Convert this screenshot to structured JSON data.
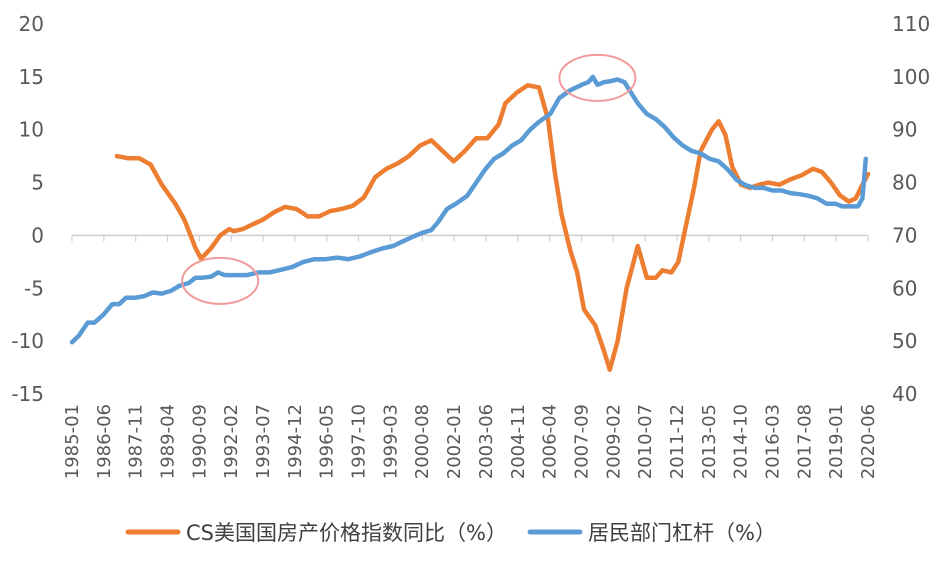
{
  "chart_data": {
    "type": "line",
    "title": "",
    "xlabel": "",
    "ylabel_left": "",
    "ylabel_right": "",
    "y_left_ticks": [
      20,
      15,
      10,
      5,
      0,
      -5,
      -10,
      -15
    ],
    "y_right_ticks": [
      110,
      100,
      90,
      80,
      70,
      60,
      50,
      40
    ],
    "y_left_range": [
      -15,
      20
    ],
    "y_right_range": [
      40,
      110
    ],
    "x_ticks": [
      "1985-01",
      "1986-06",
      "1987-11",
      "1989-04",
      "1990-09",
      "1992-02",
      "1993-07",
      "1994-12",
      "1996-05",
      "1997-10",
      "1999-03",
      "2000-08",
      "2002-01",
      "2003-06",
      "2004-11",
      "2006-04",
      "2007-09",
      "2009-02",
      "2010-07",
      "2011-12",
      "2013-05",
      "2014-10",
      "2016-03",
      "2017-08",
      "2019-01",
      "2020-06"
    ],
    "legend_position": "bottom",
    "grid": false,
    "series": [
      {
        "name": "CS美国国房产价格指数同比（%）",
        "axis": "left",
        "color": "#ED7D31",
        "points": [
          [
            1987.0,
            7.5
          ],
          [
            1987.5,
            7.3
          ],
          [
            1988.0,
            7.3
          ],
          [
            1988.5,
            6.7
          ],
          [
            1989.0,
            4.8
          ],
          [
            1989.6,
            3.0
          ],
          [
            1990.0,
            1.5
          ],
          [
            1990.5,
            -1.2
          ],
          [
            1990.75,
            -2.2
          ],
          [
            1991.2,
            -1.2
          ],
          [
            1991.6,
            0.0
          ],
          [
            1992.0,
            0.6
          ],
          [
            1992.2,
            0.4
          ],
          [
            1992.6,
            0.6
          ],
          [
            1993.0,
            1.0
          ],
          [
            1993.5,
            1.5
          ],
          [
            1994.0,
            2.2
          ],
          [
            1994.5,
            2.7
          ],
          [
            1995.0,
            2.5
          ],
          [
            1995.5,
            1.8
          ],
          [
            1996.0,
            1.8
          ],
          [
            1996.5,
            2.3
          ],
          [
            1997.0,
            2.5
          ],
          [
            1997.5,
            2.8
          ],
          [
            1998.0,
            3.6
          ],
          [
            1998.5,
            5.5
          ],
          [
            1999.0,
            6.3
          ],
          [
            1999.5,
            6.8
          ],
          [
            2000.0,
            7.5
          ],
          [
            2000.5,
            8.5
          ],
          [
            2001.0,
            9.0
          ],
          [
            2001.5,
            8.0
          ],
          [
            2002.0,
            7.0
          ],
          [
            2002.5,
            8.0
          ],
          [
            2003.0,
            9.2
          ],
          [
            2003.5,
            9.2
          ],
          [
            2004.0,
            10.5
          ],
          [
            2004.3,
            12.5
          ],
          [
            2004.8,
            13.5
          ],
          [
            2005.3,
            14.2
          ],
          [
            2005.8,
            14.0
          ],
          [
            2006.2,
            11.0
          ],
          [
            2006.5,
            6.0
          ],
          [
            2006.8,
            2.0
          ],
          [
            2007.2,
            -1.5
          ],
          [
            2007.5,
            -3.5
          ],
          [
            2007.8,
            -7.0
          ],
          [
            2008.3,
            -8.5
          ],
          [
            2008.7,
            -11.0
          ],
          [
            2008.95,
            -12.7
          ],
          [
            2009.3,
            -10.0
          ],
          [
            2009.7,
            -5.0
          ],
          [
            2010.2,
            -1.0
          ],
          [
            2010.6,
            -4.0
          ],
          [
            2011.0,
            -4.0
          ],
          [
            2011.3,
            -3.3
          ],
          [
            2011.7,
            -3.5
          ],
          [
            2012.0,
            -2.5
          ],
          [
            2012.3,
            0.5
          ],
          [
            2012.7,
            4.5
          ],
          [
            2013.0,
            8.0
          ],
          [
            2013.5,
            10.0
          ],
          [
            2013.8,
            10.8
          ],
          [
            2014.1,
            9.5
          ],
          [
            2014.4,
            6.5
          ],
          [
            2014.8,
            4.8
          ],
          [
            2015.2,
            4.5
          ],
          [
            2015.6,
            4.8
          ],
          [
            2016.0,
            5.0
          ],
          [
            2016.5,
            4.8
          ],
          [
            2017.0,
            5.3
          ],
          [
            2017.5,
            5.7
          ],
          [
            2018.0,
            6.3
          ],
          [
            2018.4,
            6.0
          ],
          [
            2018.8,
            5.0
          ],
          [
            2019.2,
            3.8
          ],
          [
            2019.6,
            3.2
          ],
          [
            2019.9,
            3.5
          ],
          [
            2020.2,
            4.8
          ],
          [
            2020.45,
            5.8
          ]
        ]
      },
      {
        "name": "居民部门杠杆（%）",
        "axis": "right",
        "color": "#5B9BD5",
        "points": [
          [
            1985.0,
            49.8
          ],
          [
            1985.3,
            51.0
          ],
          [
            1985.7,
            53.5
          ],
          [
            1986.0,
            53.5
          ],
          [
            1986.4,
            55.0
          ],
          [
            1986.8,
            57.0
          ],
          [
            1987.1,
            57.0
          ],
          [
            1987.4,
            58.2
          ],
          [
            1987.8,
            58.2
          ],
          [
            1988.2,
            58.5
          ],
          [
            1988.6,
            59.2
          ],
          [
            1989.0,
            59.0
          ],
          [
            1989.4,
            59.5
          ],
          [
            1989.8,
            60.5
          ],
          [
            1990.2,
            61.0
          ],
          [
            1990.5,
            62.0
          ],
          [
            1990.8,
            62.0
          ],
          [
            1991.2,
            62.2
          ],
          [
            1991.5,
            63.0
          ],
          [
            1991.8,
            62.5
          ],
          [
            1992.3,
            62.5
          ],
          [
            1992.8,
            62.5
          ],
          [
            1993.3,
            63.0
          ],
          [
            1993.8,
            63.0
          ],
          [
            1994.3,
            63.5
          ],
          [
            1994.8,
            64.0
          ],
          [
            1995.3,
            65.0
          ],
          [
            1995.8,
            65.5
          ],
          [
            1996.3,
            65.5
          ],
          [
            1996.8,
            65.8
          ],
          [
            1997.3,
            65.5
          ],
          [
            1997.8,
            66.0
          ],
          [
            1998.3,
            66.8
          ],
          [
            1998.8,
            67.5
          ],
          [
            1999.3,
            68.0
          ],
          [
            1999.8,
            69.0
          ],
          [
            2000.2,
            69.8
          ],
          [
            2000.6,
            70.5
          ],
          [
            2001.0,
            71.0
          ],
          [
            2001.3,
            72.5
          ],
          [
            2001.7,
            75.0
          ],
          [
            2002.1,
            76.0
          ],
          [
            2002.6,
            77.5
          ],
          [
            2003.0,
            80.0
          ],
          [
            2003.4,
            82.5
          ],
          [
            2003.8,
            84.5
          ],
          [
            2004.2,
            85.5
          ],
          [
            2004.6,
            87.0
          ],
          [
            2005.0,
            88.0
          ],
          [
            2005.4,
            90.0
          ],
          [
            2005.8,
            91.5
          ],
          [
            2006.3,
            93.0
          ],
          [
            2006.7,
            96.0
          ],
          [
            2007.2,
            97.5
          ],
          [
            2007.7,
            98.5
          ],
          [
            2008.0,
            99.0
          ],
          [
            2008.2,
            100.0
          ],
          [
            2008.4,
            98.5
          ],
          [
            2008.7,
            99.0
          ],
          [
            2009.0,
            99.2
          ],
          [
            2009.3,
            99.5
          ],
          [
            2009.6,
            99.0
          ],
          [
            2009.9,
            97.0
          ],
          [
            2010.2,
            95.0
          ],
          [
            2010.6,
            93.0
          ],
          [
            2011.0,
            92.0
          ],
          [
            2011.4,
            90.5
          ],
          [
            2011.8,
            88.5
          ],
          [
            2012.2,
            87.0
          ],
          [
            2012.6,
            86.0
          ],
          [
            2013.0,
            85.5
          ],
          [
            2013.4,
            84.5
          ],
          [
            2013.8,
            84.0
          ],
          [
            2014.2,
            82.5
          ],
          [
            2014.6,
            80.5
          ],
          [
            2015.0,
            79.5
          ],
          [
            2015.4,
            79.0
          ],
          [
            2015.8,
            79.0
          ],
          [
            2016.2,
            78.5
          ],
          [
            2016.6,
            78.5
          ],
          [
            2017.0,
            78.0
          ],
          [
            2017.4,
            77.8
          ],
          [
            2017.8,
            77.5
          ],
          [
            2018.2,
            77.0
          ],
          [
            2018.6,
            76.0
          ],
          [
            2019.0,
            76.0
          ],
          [
            2019.3,
            75.5
          ],
          [
            2019.7,
            75.5
          ],
          [
            2020.0,
            75.5
          ],
          [
            2020.2,
            77.0
          ],
          [
            2020.35,
            84.5
          ]
        ]
      }
    ],
    "annotations": [
      {
        "shape": "ellipse",
        "color": "#F29A9A",
        "x_center": 1991.6,
        "y_left_center": -4.3
      },
      {
        "shape": "ellipse",
        "color": "#F29A9A",
        "x_center": 2008.4,
        "y_left_center": 14.9
      }
    ]
  }
}
